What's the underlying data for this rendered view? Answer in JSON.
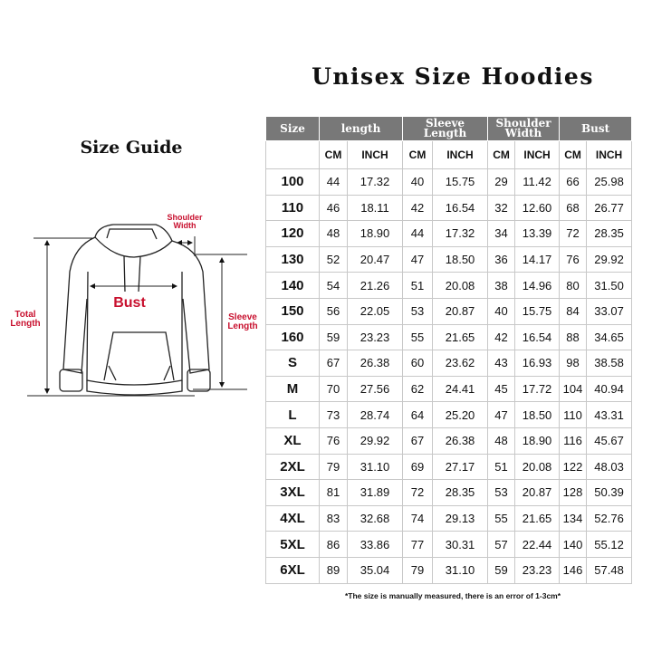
{
  "title": "Unisex Size Hoodies",
  "size_guide_label": "Size Guide",
  "diagram_labels": {
    "total_length": [
      "Total",
      "Length"
    ],
    "shoulder_width": [
      "Shoulder",
      "Width"
    ],
    "sleeve_length": [
      "Sleeve",
      "Length"
    ],
    "bust": "Bust"
  },
  "colors": {
    "header_bg": "#787878",
    "label_red": "#c8102e"
  },
  "table": {
    "headers": [
      "Size",
      "length",
      "Sleeve Length",
      "Shoulder Width",
      "Bust"
    ],
    "units": [
      "CM",
      "INCH",
      "CM",
      "INCH",
      "CM",
      "INCH",
      "CM",
      "INCH"
    ],
    "rows": [
      [
        "100",
        "44",
        "17.32",
        "40",
        "15.75",
        "29",
        "11.42",
        "66",
        "25.98"
      ],
      [
        "110",
        "46",
        "18.11",
        "42",
        "16.54",
        "32",
        "12.60",
        "68",
        "26.77"
      ],
      [
        "120",
        "48",
        "18.90",
        "44",
        "17.32",
        "34",
        "13.39",
        "72",
        "28.35"
      ],
      [
        "130",
        "52",
        "20.47",
        "47",
        "18.50",
        "36",
        "14.17",
        "76",
        "29.92"
      ],
      [
        "140",
        "54",
        "21.26",
        "51",
        "20.08",
        "38",
        "14.96",
        "80",
        "31.50"
      ],
      [
        "150",
        "56",
        "22.05",
        "53",
        "20.87",
        "40",
        "15.75",
        "84",
        "33.07"
      ],
      [
        "160",
        "59",
        "23.23",
        "55",
        "21.65",
        "42",
        "16.54",
        "88",
        "34.65"
      ],
      [
        "S",
        "67",
        "26.38",
        "60",
        "23.62",
        "43",
        "16.93",
        "98",
        "38.58"
      ],
      [
        "M",
        "70",
        "27.56",
        "62",
        "24.41",
        "45",
        "17.72",
        "104",
        "40.94"
      ],
      [
        "L",
        "73",
        "28.74",
        "64",
        "25.20",
        "47",
        "18.50",
        "110",
        "43.31"
      ],
      [
        "XL",
        "76",
        "29.92",
        "67",
        "26.38",
        "48",
        "18.90",
        "116",
        "45.67"
      ],
      [
        "2XL",
        "79",
        "31.10",
        "69",
        "27.17",
        "51",
        "20.08",
        "122",
        "48.03"
      ],
      [
        "3XL",
        "81",
        "31.89",
        "72",
        "28.35",
        "53",
        "20.87",
        "128",
        "50.39"
      ],
      [
        "4XL",
        "83",
        "32.68",
        "74",
        "29.13",
        "55",
        "21.65",
        "134",
        "52.76"
      ],
      [
        "5XL",
        "86",
        "33.86",
        "77",
        "30.31",
        "57",
        "22.44",
        "140",
        "55.12"
      ],
      [
        "6XL",
        "89",
        "35.04",
        "79",
        "31.10",
        "59",
        "23.23",
        "146",
        "57.48"
      ]
    ]
  },
  "footnote": "*The size is manually measured, there is an error of 1-3cm*"
}
